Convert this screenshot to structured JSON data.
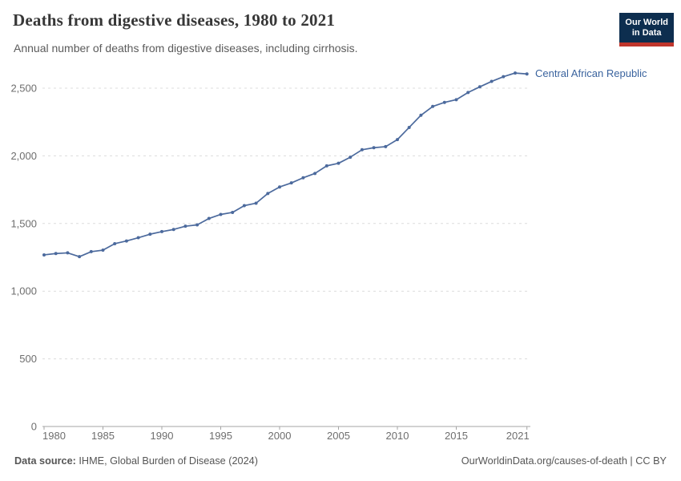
{
  "header": {
    "title": "Deaths from digestive diseases, 1980 to 2021",
    "subtitle": "Annual number of deaths from digestive diseases, including cirrhosis.",
    "logo": {
      "line1": "Our World",
      "line2": "in Data"
    }
  },
  "chart_data": {
    "type": "line",
    "title": "Deaths from digestive diseases, 1980 to 2021",
    "xlabel": "",
    "ylabel": "",
    "xlim": [
      1980,
      2021
    ],
    "ylim": [
      0,
      2650
    ],
    "grid": "horizontal-dashed",
    "legend_position": "end-of-line",
    "x": [
      1980,
      1981,
      1982,
      1983,
      1984,
      1985,
      1986,
      1987,
      1988,
      1989,
      1990,
      1991,
      1992,
      1993,
      1994,
      1995,
      1996,
      1997,
      1998,
      1999,
      2000,
      2001,
      2002,
      2003,
      2004,
      2005,
      2006,
      2007,
      2008,
      2009,
      2010,
      2011,
      2012,
      2013,
      2014,
      2015,
      2016,
      2017,
      2018,
      2019,
      2020,
      2021
    ],
    "series": [
      {
        "name": "Central African Republic",
        "color": "#4c6a9d",
        "values": [
          1268,
          1278,
          1283,
          1255,
          1292,
          1303,
          1351,
          1371,
          1395,
          1421,
          1440,
          1456,
          1480,
          1490,
          1537,
          1567,
          1582,
          1632,
          1650,
          1722,
          1770,
          1800,
          1838,
          1870,
          1926,
          1945,
          1990,
          2045,
          2060,
          2068,
          2120,
          2210,
          2300,
          2365,
          2395,
          2415,
          2468,
          2510,
          2550,
          2585,
          2612,
          2605
        ]
      }
    ],
    "x_tick_years": [
      1980,
      1985,
      1990,
      1995,
      2000,
      2005,
      2010,
      2015,
      2021
    ],
    "x_tick_labels": [
      "1980",
      "1985",
      "1990",
      "1995",
      "2000",
      "2005",
      "2010",
      "2015",
      "2021"
    ],
    "y_ticks": [
      {
        "value": 0,
        "label": "0"
      },
      {
        "value": 500,
        "label": "500"
      },
      {
        "value": 1000,
        "label": "1,000"
      },
      {
        "value": 1500,
        "label": "1,500"
      },
      {
        "value": 2000,
        "label": "2,000"
      },
      {
        "value": 2500,
        "label": "2,500"
      }
    ]
  },
  "colors": {
    "line": "#4c6a9d",
    "entity_label": "#3a639e",
    "grid": "#dcdcdc",
    "axis": "#a5a5a5",
    "tick_text": "#6e6e6e",
    "logo_bg": "#0d2e4f",
    "logo_accent": "#c0362c"
  },
  "footer": {
    "data_source_label": "Data source:",
    "data_source_value": "IHME, Global Burden of Disease (2024)",
    "link_text": "OurWorldinData.org/causes-of-death | CC BY"
  }
}
